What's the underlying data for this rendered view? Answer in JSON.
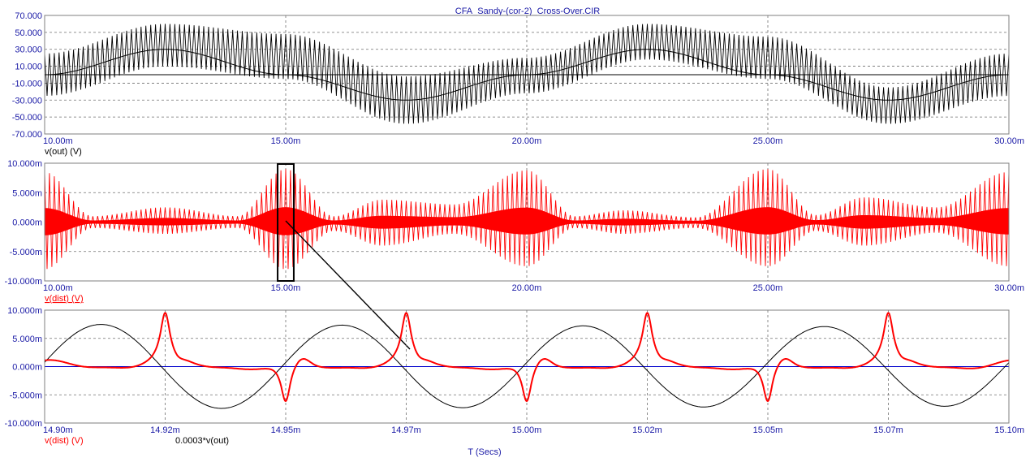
{
  "window_title": "CFA_Sandy-(cor-2)_Cross-Over.CIR",
  "x_axis_title": "T (Secs)",
  "colors": {
    "axis_text": "#1a1aa6",
    "black_trace": "#000000",
    "red_trace": "#ff0000",
    "zero_line": "#0000cc",
    "grid": "#6f6f6f",
    "frame": "#7f7f7f"
  },
  "chart_data": [
    {
      "type": "line",
      "panel": "top",
      "x_unit": "s",
      "xlim": [
        0.01,
        0.03
      ],
      "ylim": [
        -70,
        70
      ],
      "x_ticks": [
        0.01,
        0.015,
        0.02,
        0.025,
        0.03
      ],
      "x_tick_labels": [
        "10.00m",
        "15.00m",
        "20.00m",
        "25.00m",
        "30.00m"
      ],
      "y_ticks": [
        70,
        50,
        30,
        10,
        -10,
        -30,
        -50,
        -70
      ],
      "y_tick_labels": [
        "70.000",
        "50.000",
        "30.000",
        "10.000",
        "-10.000",
        "-30.000",
        "-50.000",
        "-70.000"
      ],
      "grid": true,
      "series": [
        {
          "name": "v(out) (V)",
          "color": "#000000",
          "description_points": {
            "x": [
              0.01,
              0.0125,
              0.015,
              0.0175,
              0.02,
              0.0225,
              0.025,
              0.0275,
              0.03
            ],
            "y_center": [
              0,
              30,
              0,
              -30,
              0,
              30,
              0,
              -30,
              0
            ],
            "envelope_top": [
              25,
              60,
              48,
              -2,
              20,
              60,
              45,
              -15,
              25
            ],
            "envelope_bottom": [
              -25,
              10,
              -5,
              -58,
              -22,
              18,
              -5,
              -58,
              -25
            ]
          }
        }
      ],
      "legend": [
        {
          "text": "v(out) (V)",
          "color": "#000000",
          "underline": false
        }
      ]
    },
    {
      "type": "line",
      "panel": "middle",
      "x_unit": "s",
      "xlim": [
        0.01,
        0.03
      ],
      "ylim": [
        -10,
        10
      ],
      "x_ticks": [
        0.01,
        0.015,
        0.02,
        0.025,
        0.03
      ],
      "x_tick_labels": [
        "10.00m",
        "15.00m",
        "20.00m",
        "25.00m",
        "30.00m"
      ],
      "y_ticks": [
        10,
        5,
        0,
        -5,
        -10
      ],
      "y_tick_labels": [
        "10.000m",
        "5.000m",
        "0.000m",
        "-5.000m",
        "-10.000m"
      ],
      "grid": true,
      "series": [
        {
          "name": "v(dist) (V)",
          "color": "#ff0000",
          "envelope": {
            "x": [
              0.01,
              0.011,
              0.0125,
              0.014,
              0.015,
              0.016,
              0.017,
              0.0185,
              0.02,
              0.021,
              0.022,
              0.0235,
              0.025,
              0.026,
              0.027,
              0.0285,
              0.03
            ],
            "top": [
              8.5,
              1.0,
              2.5,
              1.0,
              9.0,
              1.0,
              3.8,
              3.0,
              8.8,
              1.0,
              2.0,
              0.8,
              9.0,
              1.2,
              4.2,
              2.5,
              8.5
            ],
            "bottom": [
              -8.0,
              -1.0,
              -2.0,
              -1.0,
              -8.0,
              -1.5,
              -4.0,
              -2.0,
              -7.5,
              -1.0,
              -2.0,
              -1.0,
              -7.5,
              -1.5,
              -4.0,
              -1.8,
              -7.5
            ]
          }
        }
      ],
      "zoom_box": {
        "x_range": [
          0.0149,
          0.0151
        ],
        "y_range": [
          -10,
          10
        ]
      },
      "legend": [
        {
          "text": "v(dist) (V)",
          "color": "#ff0000",
          "underline": true
        }
      ]
    },
    {
      "type": "line",
      "panel": "bottom",
      "x_unit": "s",
      "xlim": [
        0.0149,
        0.0151
      ],
      "ylim": [
        -10,
        10
      ],
      "x_ticks": [
        0.0149,
        0.014925,
        0.01495,
        0.014975,
        0.015,
        0.015025,
        0.01505,
        0.015075,
        0.0151
      ],
      "x_tick_labels": [
        "14.90m",
        "14.92m",
        "14.95m",
        "14.97m",
        "15.00m",
        "15.02m",
        "15.05m",
        "15.07m",
        "15.10m"
      ],
      "y_ticks": [
        10,
        5,
        0,
        -5,
        -10
      ],
      "y_tick_labels": [
        "10.000m",
        "5.000m",
        "0.000m",
        "-5.000m",
        "-10.000m"
      ],
      "grid": true,
      "series": [
        {
          "name": "v(dist) (V)",
          "color": "#ff0000",
          "spikes_up_at": [
            0.014925,
            0.014975,
            0.015025,
            0.015075
          ],
          "spikes_down_at": [
            0.01495,
            0.015,
            0.01505
          ],
          "spike_up_value": 8.5,
          "spike_down_value": -7.3
        },
        {
          "name": "0.0003*v(out)",
          "color": "#000000",
          "period": 5e-05,
          "amplitude_start": 7.5,
          "amplitude_end": 7.0
        }
      ],
      "zero_line": {
        "y": 0,
        "color": "#0000cc"
      },
      "legend": [
        {
          "text": "v(dist) (V)",
          "color": "#ff0000",
          "underline": false
        },
        {
          "text": "0.0003*v(out)",
          "color": "#000000",
          "underline": false
        }
      ]
    }
  ]
}
